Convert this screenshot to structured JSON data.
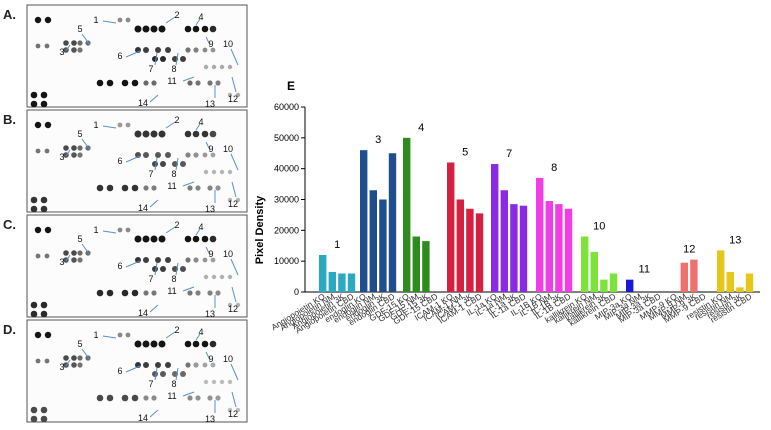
{
  "figure": {
    "panel_letter": "E",
    "blot_panels": [
      {
        "letter": "A."
      },
      {
        "letter": "B."
      },
      {
        "letter": "C."
      },
      {
        "letter": "D."
      }
    ],
    "blot_numbers": [
      "1",
      "2",
      "3",
      "4",
      "5",
      "6",
      "7",
      "8",
      "9",
      "10",
      "11",
      "12",
      "13",
      "14"
    ]
  },
  "chart_data": {
    "type": "bar",
    "title": "",
    "xlabel": "",
    "ylabel": "Pixel Density",
    "ylim": [
      0,
      60000
    ],
    "yticks": [
      "0",
      "10000",
      "20000",
      "30000",
      "40000",
      "50000",
      "60000"
    ],
    "grid": false,
    "groups": [
      {
        "label": "1",
        "color": "#2aa9c1",
        "bars": [
          {
            "name": "Angiopoietin KO",
            "value": 12000
          },
          {
            "name": "Angiopoietin NM",
            "value": 6500
          },
          {
            "name": "Angiopoietin 3K",
            "value": 6000
          },
          {
            "name": "Angiopoietin CBD",
            "value": 6000
          }
        ]
      },
      {
        "label": "3",
        "color": "#1f4e8c",
        "bars": [
          {
            "name": "endoglin KO",
            "value": 46000
          },
          {
            "name": "endoglin NM",
            "value": 33000
          },
          {
            "name": "endoglin 3K",
            "value": 30000
          },
          {
            "name": "endoglin CBD",
            "value": 45000
          }
        ]
      },
      {
        "label": "4",
        "color": "#2e8b1e",
        "bars": [
          {
            "name": "GDF-15 KO",
            "value": 50000
          },
          {
            "name": "GDF-15 NM",
            "value": 18000
          },
          {
            "name": "GDF-15 3K",
            "value": 16500
          },
          {
            "name": "GDF-15 CBD",
            "value": 0
          }
        ]
      },
      {
        "label": "5",
        "color": "#d62040",
        "bars": [
          {
            "name": "ICAM-1 KO",
            "value": 42000
          },
          {
            "name": "ICAM-1 NM",
            "value": 30000
          },
          {
            "name": "ICAM-1 3K",
            "value": 27000
          },
          {
            "name": "ICAM-1 CBD",
            "value": 25500
          }
        ]
      },
      {
        "label": "7",
        "color": "#8a2be2",
        "bars": [
          {
            "name": "IL-1a KO",
            "value": 41500
          },
          {
            "name": "IL-1a NM",
            "value": 33000
          },
          {
            "name": "IL-1a 3K",
            "value": 28500
          },
          {
            "name": "IL-1a CBD",
            "value": 28000
          }
        ]
      },
      {
        "label": "8",
        "color": "#f03ee6",
        "bars": [
          {
            "name": "IL-1B KO",
            "value": 37000
          },
          {
            "name": "IL-1B NM",
            "value": 29500
          },
          {
            "name": "IL-1B 3K",
            "value": 28500
          },
          {
            "name": "IL-1B CBD",
            "value": 27000
          }
        ]
      },
      {
        "label": "10",
        "color": "#7be33a",
        "bars": [
          {
            "name": "kallikrein KO",
            "value": 18000
          },
          {
            "name": "kallikrein NM",
            "value": 13000
          },
          {
            "name": "kallikrein 3K",
            "value": 4000
          },
          {
            "name": "kallikrein CBD",
            "value": 6000
          }
        ]
      },
      {
        "label": "11",
        "color": "#1a1ad6",
        "bars": [
          {
            "name": "MIP-3a KO",
            "value": 4000
          },
          {
            "name": "MIP-3a NM",
            "value": 0
          },
          {
            "name": "MIP-3a 3K",
            "value": 0
          },
          {
            "name": "MIP-3a CBD",
            "value": 0
          }
        ]
      },
      {
        "label": "12",
        "color": "#f07070",
        "bars": [
          {
            "name": "MMP-9 KO",
            "value": 0
          },
          {
            "name": "MMP-9 NM",
            "value": 9500
          },
          {
            "name": "MMP-9 3K",
            "value": 10500
          },
          {
            "name": "MMP-9 CBD",
            "value": 0
          }
        ]
      },
      {
        "label": "13",
        "color": "#e6c619",
        "bars": [
          {
            "name": "resistin KO",
            "value": 13500
          },
          {
            "name": "resistin NM",
            "value": 6500
          },
          {
            "name": "resistin 3K",
            "value": 1500
          },
          {
            "name": "resistin CBD",
            "value": 6000
          }
        ]
      }
    ]
  }
}
